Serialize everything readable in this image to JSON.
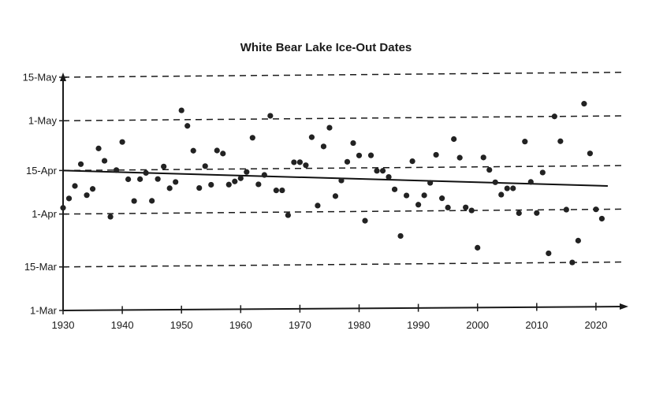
{
  "chart_data": {
    "type": "scatter",
    "title": "White Bear Lake Ice-Out Dates",
    "xlabel": "",
    "ylabel": "",
    "x_ticks": [
      1930,
      1940,
      1950,
      1960,
      1970,
      1980,
      1990,
      2000,
      2010,
      2020
    ],
    "xlim": [
      1930,
      2025
    ],
    "y_ticks": [
      {
        "label": "1-Mar",
        "day": 0
      },
      {
        "label": "15-Mar",
        "day": 14
      },
      {
        "label": "1-Apr",
        "day": 31
      },
      {
        "label": "15-Apr",
        "day": 45
      },
      {
        "label": "1-May",
        "day": 61
      },
      {
        "label": "15-May",
        "day": 75
      }
    ],
    "y_units": "days after 1-Mar",
    "ylim": [
      0,
      75
    ],
    "grid": "horizontal dashed",
    "legend": "none",
    "trendline": {
      "x": [
        1930,
        2022
      ],
      "y": [
        45,
        38.5
      ]
    },
    "series": [
      {
        "name": "Ice-out date",
        "x": [
          1930,
          1931,
          1932,
          1933,
          1934,
          1935,
          1936,
          1937,
          1938,
          1939,
          1940,
          1941,
          1942,
          1943,
          1944,
          1945,
          1946,
          1947,
          1948,
          1949,
          1950,
          1951,
          1952,
          1953,
          1954,
          1955,
          1956,
          1957,
          1958,
          1959,
          1960,
          1961,
          1962,
          1963,
          1964,
          1965,
          1966,
          1967,
          1968,
          1969,
          1970,
          1971,
          1972,
          1973,
          1974,
          1975,
          1976,
          1977,
          1978,
          1979,
          1980,
          1981,
          1982,
          1983,
          1984,
          1985,
          1986,
          1987,
          1988,
          1989,
          1990,
          1991,
          1992,
          1993,
          1994,
          1995,
          1996,
          1997,
          1998,
          1999,
          2000,
          2001,
          2002,
          2003,
          2004,
          2005,
          2006,
          2007,
          2008,
          2009,
          2010,
          2011,
          2012,
          2013,
          2014,
          2015,
          2016,
          2017,
          2018,
          2019,
          2020,
          2021
        ],
        "y": [
          33,
          36,
          40,
          47,
          37,
          39,
          52,
          48,
          30,
          45,
          54,
          42,
          35,
          42,
          44,
          35,
          42,
          46,
          39,
          41,
          64,
          59,
          51,
          39,
          46,
          40,
          51,
          50,
          40,
          41,
          42,
          44,
          55,
          40,
          43,
          62,
          38,
          38,
          30,
          47,
          47,
          46,
          55,
          33,
          52,
          58,
          36,
          41,
          47,
          53,
          49,
          28,
          49,
          44,
          44,
          42,
          38,
          23,
          36,
          47,
          33,
          36,
          40,
          49,
          35,
          32,
          54,
          48,
          32,
          31,
          19,
          48,
          44,
          40,
          36,
          38,
          38,
          30,
          53,
          40,
          30,
          43,
          17,
          61,
          53,
          31,
          14,
          21,
          65,
          49,
          31,
          28
        ]
      }
    ]
  }
}
